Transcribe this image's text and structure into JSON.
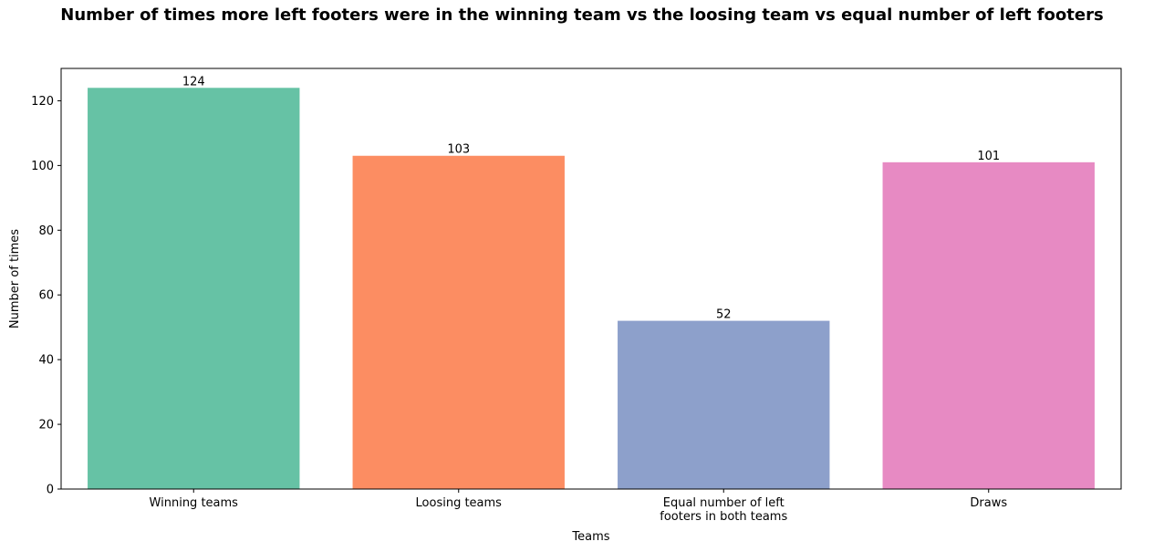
{
  "chart_data": {
    "type": "bar",
    "title": "Number of times more left footers were in the winning team vs the loosing team vs equal number of left footers",
    "xlabel": "Teams",
    "ylabel": "Number of times",
    "categories": [
      [
        "Winning teams"
      ],
      [
        "Loosing teams"
      ],
      [
        "Equal number of left",
        "footers in both teams"
      ],
      [
        "Draws"
      ]
    ],
    "values": [
      124,
      103,
      52,
      101
    ],
    "data_labels": [
      "124",
      "103",
      "52",
      "101"
    ],
    "colors": [
      "#66c2a5",
      "#fc8d62",
      "#8da0cb",
      "#e78ac3"
    ],
    "ylim": [
      0,
      130
    ],
    "yticks": [
      0,
      20,
      40,
      60,
      80,
      100,
      120
    ],
    "grid": false,
    "legend": "none"
  }
}
